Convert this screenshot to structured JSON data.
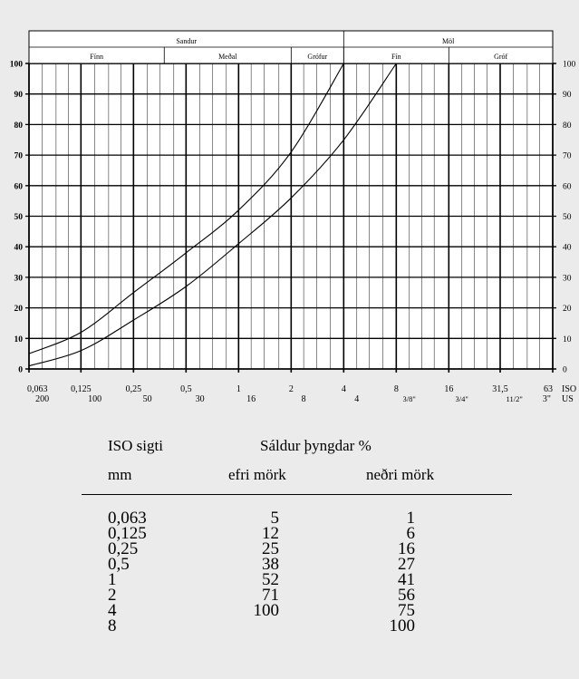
{
  "chart_data": {
    "type": "line",
    "x_scale": "log",
    "classification_top": {
      "groups": [
        {
          "label": "Sandur",
          "from": 0.063,
          "to": 4
        },
        {
          "label": "Möl",
          "from": 4,
          "to": 63
        }
      ],
      "subgroups": [
        {
          "label": "Fínn",
          "from": 0.063,
          "to": 0.375
        },
        {
          "label": "Meðal",
          "from": 0.375,
          "to": 2.0
        },
        {
          "label": "Grófur",
          "from": 2.0,
          "to": 4
        },
        {
          "label": "Fín",
          "from": 4,
          "to": 16
        },
        {
          "label": "Gróf",
          "from": 16,
          "to": 63
        }
      ]
    },
    "y_left_ticks": [
      0,
      10,
      20,
      30,
      40,
      50,
      60,
      70,
      80,
      90,
      100
    ],
    "y_right_ticks": [
      "0",
      "10",
      "20",
      "30",
      "40",
      "50",
      "60",
      "70",
      "80",
      "90",
      "100"
    ],
    "iso_ticks": [
      {
        "value": 0.063,
        "label": "0,063"
      },
      {
        "value": 0.125,
        "label": "0,125"
      },
      {
        "value": 0.25,
        "label": "0,25"
      },
      {
        "value": 0.5,
        "label": "0,5"
      },
      {
        "value": 1,
        "label": "1"
      },
      {
        "value": 2,
        "label": "2"
      },
      {
        "value": 4,
        "label": "4"
      },
      {
        "value": 8,
        "label": "8"
      },
      {
        "value": 16,
        "label": "16"
      },
      {
        "value": 31.5,
        "label": "31,5"
      },
      {
        "value": 63,
        "label": "63"
      }
    ],
    "iso_axis_label": "ISO",
    "us_ticks": [
      {
        "value": 0.075,
        "label": "200"
      },
      {
        "value": 0.15,
        "label": "100"
      },
      {
        "value": 0.3,
        "label": "50"
      },
      {
        "value": 0.6,
        "label": "30"
      },
      {
        "value": 1.18,
        "label": "16"
      },
      {
        "value": 2.36,
        "label": "8"
      },
      {
        "value": 4.75,
        "label": "4"
      },
      {
        "value": 9.5,
        "label": "3/8\""
      },
      {
        "value": 19,
        "label": "3/4\""
      },
      {
        "value": 38,
        "label": "11/2\""
      },
      {
        "value": 75,
        "label": "3\""
      }
    ],
    "us_axis_label": "US",
    "vertical_grid_values": [
      0.063,
      0.075,
      0.09,
      0.106,
      0.125,
      0.15,
      0.18,
      0.212,
      0.25,
      0.3,
      0.355,
      0.425,
      0.5,
      0.6,
      0.71,
      0.85,
      1,
      1.18,
      1.4,
      1.7,
      2,
      2.36,
      2.8,
      3.35,
      4,
      4.75,
      5.6,
      6.7,
      8,
      9.5,
      11.2,
      13.2,
      16,
      19,
      22.4,
      26.5,
      31.5,
      37.5,
      45,
      53,
      63
    ],
    "series": [
      {
        "x": [
          0.063,
          0.125,
          0.25,
          0.5,
          1,
          2,
          4
        ],
        "y": [
          5,
          12,
          25,
          38,
          52,
          71,
          100
        ]
      },
      {
        "x": [
          0.063,
          0.125,
          0.25,
          0.5,
          1,
          2,
          4,
          8
        ],
        "y": [
          1,
          6,
          16,
          27,
          41,
          56,
          75,
          100
        ]
      }
    ],
    "ylim": [
      0,
      100
    ],
    "xlim": [
      0.063,
      63
    ],
    "grid": true
  },
  "table": {
    "header1": {
      "iso": "ISO sigti",
      "passing": "Sáldur  þyngdar %"
    },
    "header2": {
      "mm": "mm",
      "upper": "efri mörk",
      "lower": "neðri mörk"
    },
    "rows": [
      {
        "iso": "0,063",
        "upper": "5",
        "lower": "1"
      },
      {
        "iso": "0,125",
        "upper": "12",
        "lower": "6"
      },
      {
        "iso": "0,25",
        "upper": "25",
        "lower": "16"
      },
      {
        "iso": "0,5",
        "upper": "38",
        "lower": "27"
      },
      {
        "iso": "1",
        "upper": "52",
        "lower": "41"
      },
      {
        "iso": "2",
        "upper": "71",
        "lower": "56"
      },
      {
        "iso": "4",
        "upper": "100",
        "lower": "75"
      },
      {
        "iso": "8",
        "upper": "",
        "lower": "100"
      }
    ]
  }
}
